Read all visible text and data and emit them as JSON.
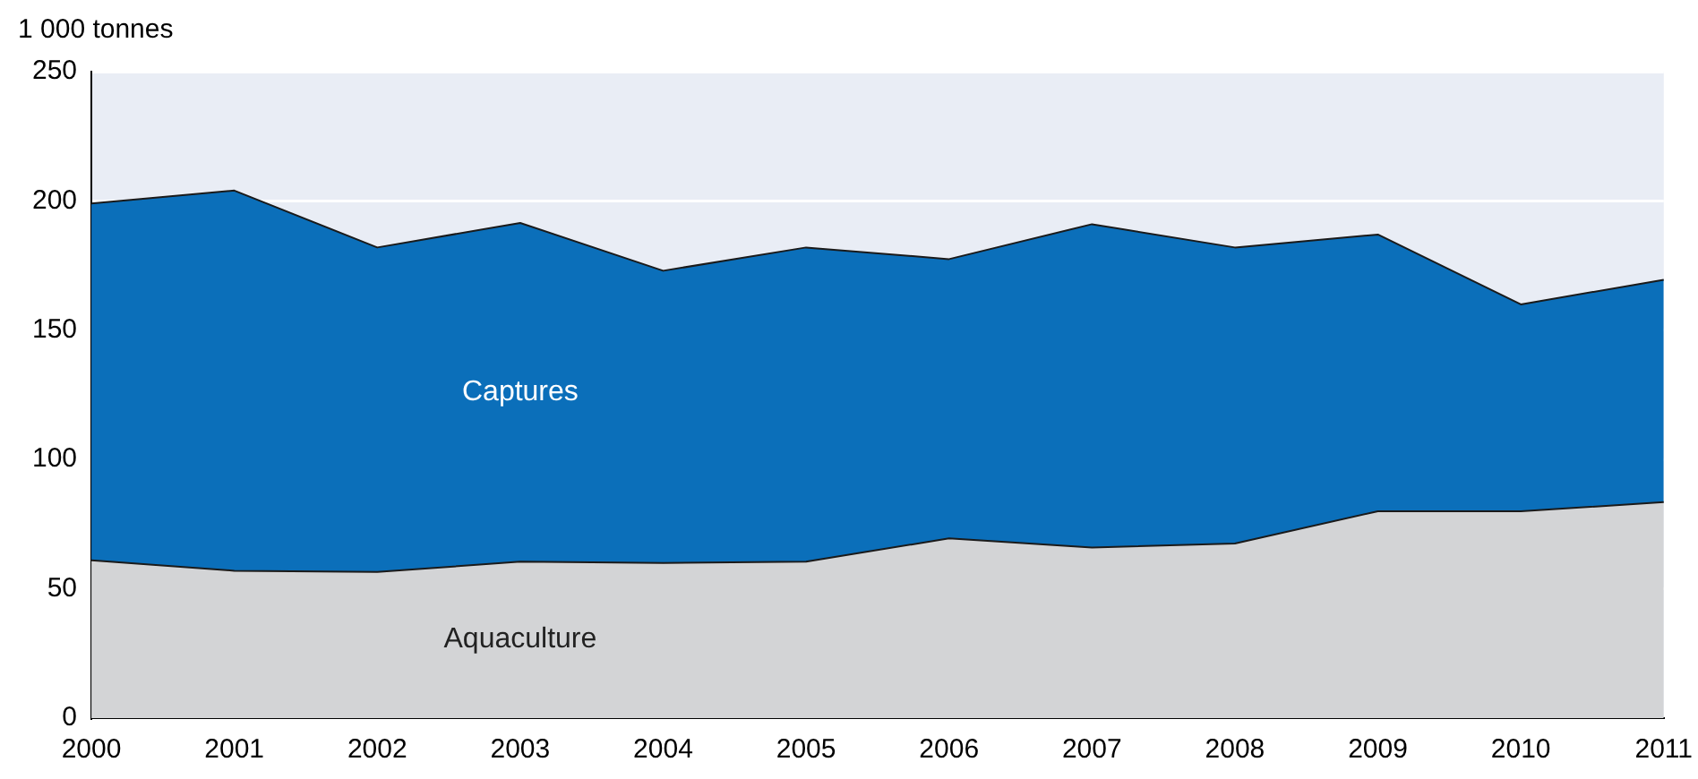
{
  "chart_data": {
    "type": "area",
    "ylabel": "1 000 tonnes",
    "stacked": true,
    "grid": "y",
    "legend": false,
    "categories": [
      "2000",
      "2001",
      "2002",
      "2003",
      "2004",
      "2005",
      "2006",
      "2007",
      "2008",
      "2009",
      "2010",
      "2011"
    ],
    "ylim": [
      0,
      250
    ],
    "yticks": [
      0,
      50,
      100,
      150,
      200,
      250
    ],
    "series": [
      {
        "name": "Aquaculture",
        "color": "#d3d4d6",
        "values": [
          61,
          57,
          56.5,
          60.5,
          60,
          60.5,
          69.5,
          66,
          67.5,
          80,
          80,
          83.5
        ]
      },
      {
        "name": "Captures",
        "color": "#0b6fba",
        "values": [
          138,
          147,
          125.5,
          131,
          113,
          121.5,
          108,
          125,
          114.5,
          107,
          80,
          86
        ]
      }
    ]
  }
}
